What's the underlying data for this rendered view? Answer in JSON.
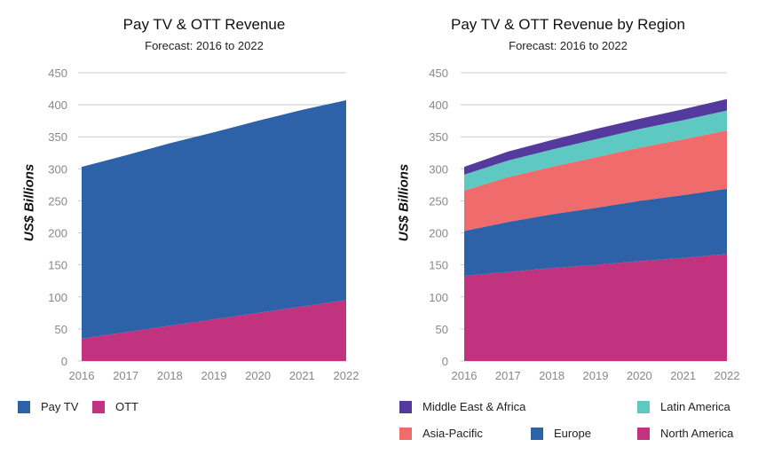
{
  "chart_data": [
    {
      "type": "area",
      "title": "Pay TV & OTT Revenue",
      "subtitle": "Forecast: 2016 to 2022",
      "ylabel": "US$ Billions",
      "ylim": [
        0,
        450
      ],
      "yticks": [
        "0",
        "50",
        "100",
        "150",
        "200",
        "250",
        "300",
        "350",
        "400",
        "450"
      ],
      "x": [
        "2016",
        "2017",
        "2018",
        "2019",
        "2020",
        "2021",
        "2022"
      ],
      "stacked": true,
      "grid": true,
      "legend_position": "bottom",
      "series": [
        {
          "name": "OTT",
          "color": "#c2337f",
          "values": [
            35,
            45,
            55,
            65,
            75,
            85,
            95
          ]
        },
        {
          "name": "Pay TV",
          "color": "#2e62a8",
          "values": [
            268,
            276,
            285,
            292,
            300,
            307,
            312
          ]
        }
      ],
      "legend": [
        {
          "name": "Pay TV",
          "color": "#2e62a8"
        },
        {
          "name": "OTT",
          "color": "#c2337f"
        }
      ]
    },
    {
      "type": "area",
      "title": "Pay TV & OTT Revenue by Region",
      "subtitle": "Forecast: 2016 to 2022",
      "ylabel": "US$ Billions",
      "ylim": [
        0,
        450
      ],
      "yticks": [
        "0",
        "50",
        "100",
        "150",
        "200",
        "250",
        "300",
        "350",
        "400",
        "450"
      ],
      "x": [
        "2016",
        "2017",
        "2018",
        "2019",
        "2020",
        "2021",
        "2022"
      ],
      "stacked": true,
      "grid": true,
      "legend_position": "bottom",
      "series": [
        {
          "name": "North America",
          "color": "#c2337f",
          "values": [
            133,
            139,
            145,
            150,
            156,
            161,
            167
          ]
        },
        {
          "name": "Europe",
          "color": "#2e62a8",
          "values": [
            70,
            78,
            84,
            89,
            94,
            98,
            102
          ]
        },
        {
          "name": "Asia-Pacific",
          "color": "#f06c6c",
          "values": [
            63,
            70,
            74,
            79,
            83,
            87,
            91
          ]
        },
        {
          "name": "Latin America",
          "color": "#5ec8c3",
          "values": [
            25,
            26,
            27,
            28,
            29,
            30,
            31
          ]
        },
        {
          "name": "Middle East & Africa",
          "color": "#533a9c",
          "values": [
            12,
            14,
            15,
            16,
            16,
            17,
            18
          ]
        }
      ],
      "legend": [
        {
          "name": "Middle East & Africa",
          "color": "#533a9c"
        },
        {
          "name": "Latin America",
          "color": "#5ec8c3"
        },
        {
          "name": "Asia-Pacific",
          "color": "#f06c6c"
        },
        {
          "name": "Europe",
          "color": "#2e62a8"
        },
        {
          "name": "North America",
          "color": "#c2337f"
        }
      ]
    }
  ]
}
